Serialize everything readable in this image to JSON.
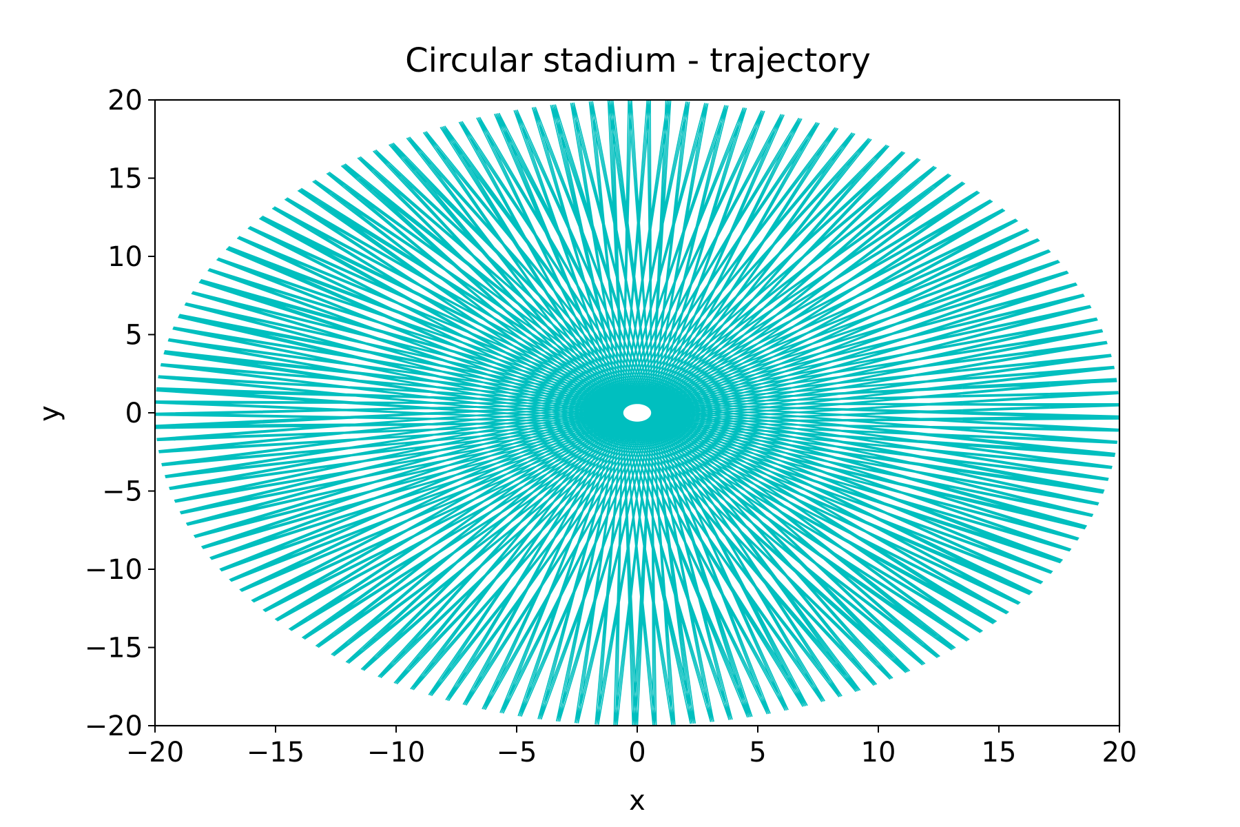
{
  "chart_data": {
    "type": "line",
    "title": "Circular stadium - trajectory",
    "xlabel": "x",
    "ylabel": "y",
    "xlim": [
      -20,
      20
    ],
    "ylim": [
      -20,
      20
    ],
    "x_ticks": [
      -20,
      -15,
      -10,
      -5,
      0,
      5,
      10,
      15,
      20
    ],
    "x_tick_labels": [
      "−20",
      "−15",
      "−10",
      "−5",
      "0",
      "5",
      "10",
      "15",
      "20"
    ],
    "y_ticks": [
      -20,
      -15,
      -10,
      -5,
      0,
      5,
      10,
      15,
      20
    ],
    "y_tick_labels": [
      "−20",
      "−15",
      "−10",
      "−5",
      "0",
      "5",
      "10",
      "15",
      "20"
    ],
    "grid": false,
    "legend": "none",
    "series": [
      {
        "color": "#00bfbf",
        "description": "billiard trajectory: chords of a circle of radius 20 centred at the origin, each tangent to an inner caustic circle of radius ~0.6",
        "boundary_radius": 20,
        "caustic_radius": 0.6,
        "reflections": 500
      }
    ]
  }
}
